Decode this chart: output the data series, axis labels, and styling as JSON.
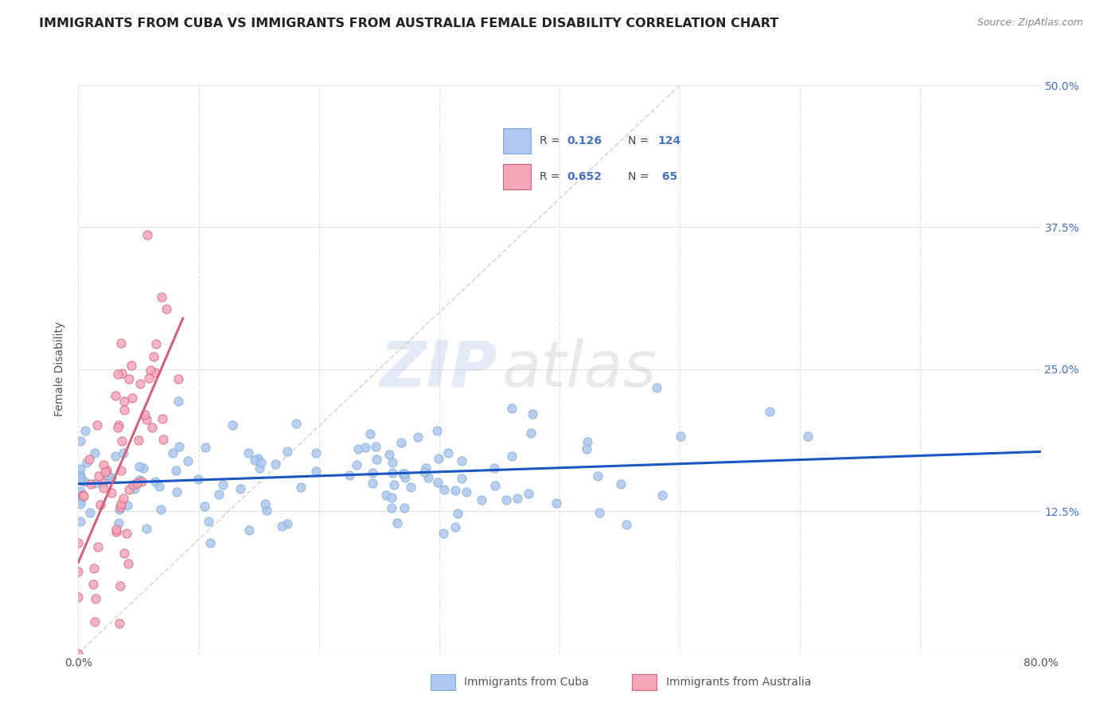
{
  "title": "IMMIGRANTS FROM CUBA VS IMMIGRANTS FROM AUSTRALIA FEMALE DISABILITY CORRELATION CHART",
  "source": "Source: ZipAtlas.com",
  "ylabel_label": "Female Disability",
  "cuba_color": "#aec6f0",
  "cuba_edge": "#7bafd4",
  "cuba_line_color": "#1a56c4",
  "australia_color": "#f4a7b9",
  "australia_edge": "#d4607a",
  "australia_line_color": "#d4607a",
  "diagonal_color": "#cccccc",
  "watermark_zip": "ZIP",
  "watermark_atlas": "atlas",
  "xmin": 0.0,
  "xmax": 0.8,
  "ymin": 0.0,
  "ymax": 0.5,
  "cuba_R": 0.126,
  "cuba_N": 124,
  "australia_R": 0.652,
  "australia_N": 65,
  "grid_color": "#e0e0e0",
  "background_color": "#ffffff",
  "right_ytick_color": "#4472c4",
  "title_color": "#222222",
  "source_color": "#888888",
  "legend_border_color": "#cccccc"
}
